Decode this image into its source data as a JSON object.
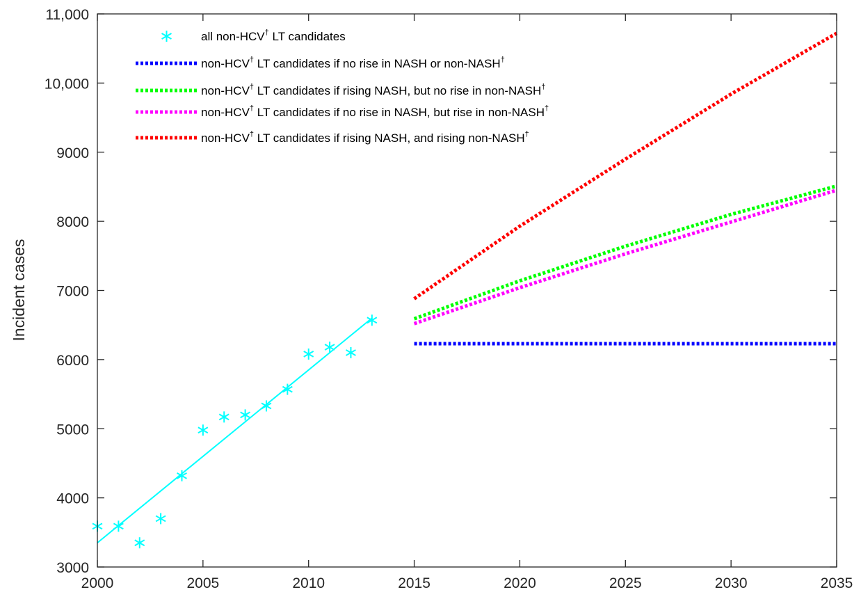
{
  "chart_data": {
    "type": "line",
    "title": "",
    "xlabel": "",
    "ylabel": "Incident cases",
    "xlim": [
      2000,
      2035
    ],
    "ylim": [
      3000,
      11000
    ],
    "grid": false,
    "legend_position": "top-left",
    "x_ticks": [
      2000,
      2005,
      2010,
      2015,
      2020,
      2025,
      2030,
      2035
    ],
    "x_tick_labels": [
      "2000",
      "2005",
      "2010",
      "2015",
      "2020",
      "2025",
      "2030",
      "2035"
    ],
    "y_ticks": [
      3000,
      4000,
      5000,
      6000,
      7000,
      8000,
      9000,
      10000,
      11000
    ],
    "y_tick_labels": [
      "3000",
      "4000",
      "5000",
      "6000",
      "7000",
      "8000",
      "9000",
      "10,000",
      "11,000"
    ],
    "observed": {
      "name": "all non-HCV† LT candidates",
      "name_main": "all non-HCV",
      "name_sup": "†",
      "name_rest": " LT candidates",
      "color": "#00ffff",
      "marker": "asterisk",
      "x": [
        2000,
        2001,
        2002,
        2003,
        2004,
        2005,
        2006,
        2007,
        2008,
        2009,
        2010,
        2011,
        2012,
        2013
      ],
      "y": [
        3590,
        3590,
        3350,
        3700,
        4320,
        4980,
        5170,
        5200,
        5330,
        5570,
        6080,
        6180,
        6100,
        6570
      ]
    },
    "fit_line": {
      "color": "#00ffff",
      "x": [
        2000,
        2013
      ],
      "y": [
        3350,
        6600
      ]
    },
    "series": [
      {
        "name": "non-HCV† LT candidates if no rise in NASH or non-NASH†",
        "name_main": "non-HCV",
        "name_mid": " LT candidates if no rise in NASH or non-NASH",
        "color": "#0000ff",
        "style": "dotted",
        "x": [
          2015,
          2035
        ],
        "y": [
          6230,
          6230
        ]
      },
      {
        "name": "non-HCV† LT candidates if rising NASH, but no rise in non-NASH†",
        "name_main": "non-HCV",
        "name_mid": " LT candidates if rising NASH, but no rise in non-NASH",
        "color": "#00ff00",
        "style": "dotted",
        "x": [
          2015,
          2020,
          2025,
          2030,
          2035
        ],
        "y": [
          6590,
          7140,
          7640,
          8100,
          8510
        ]
      },
      {
        "name": "non-HCV† LT candidates if no rise in NASH, but rise in non-NASH†",
        "name_main": "non-HCV",
        "name_mid": " LT candidates if no rise in NASH, but rise in non-NASH",
        "color": "#ff00ff",
        "style": "dotted",
        "x": [
          2015,
          2020,
          2025,
          2030,
          2035
        ],
        "y": [
          6520,
          7040,
          7530,
          7990,
          8450
        ]
      },
      {
        "name": "non-HCV† LT candidates if rising NASH, and rising non-NASH†",
        "name_main": "non-HCV",
        "name_mid": " LT candidates if rising NASH, and rising non-NASH",
        "color": "#ff0000",
        "style": "dotted",
        "x": [
          2015,
          2020,
          2025,
          2030,
          2035
        ],
        "y": [
          6880,
          7930,
          8900,
          9840,
          10720
        ]
      }
    ],
    "dagger": "†"
  }
}
